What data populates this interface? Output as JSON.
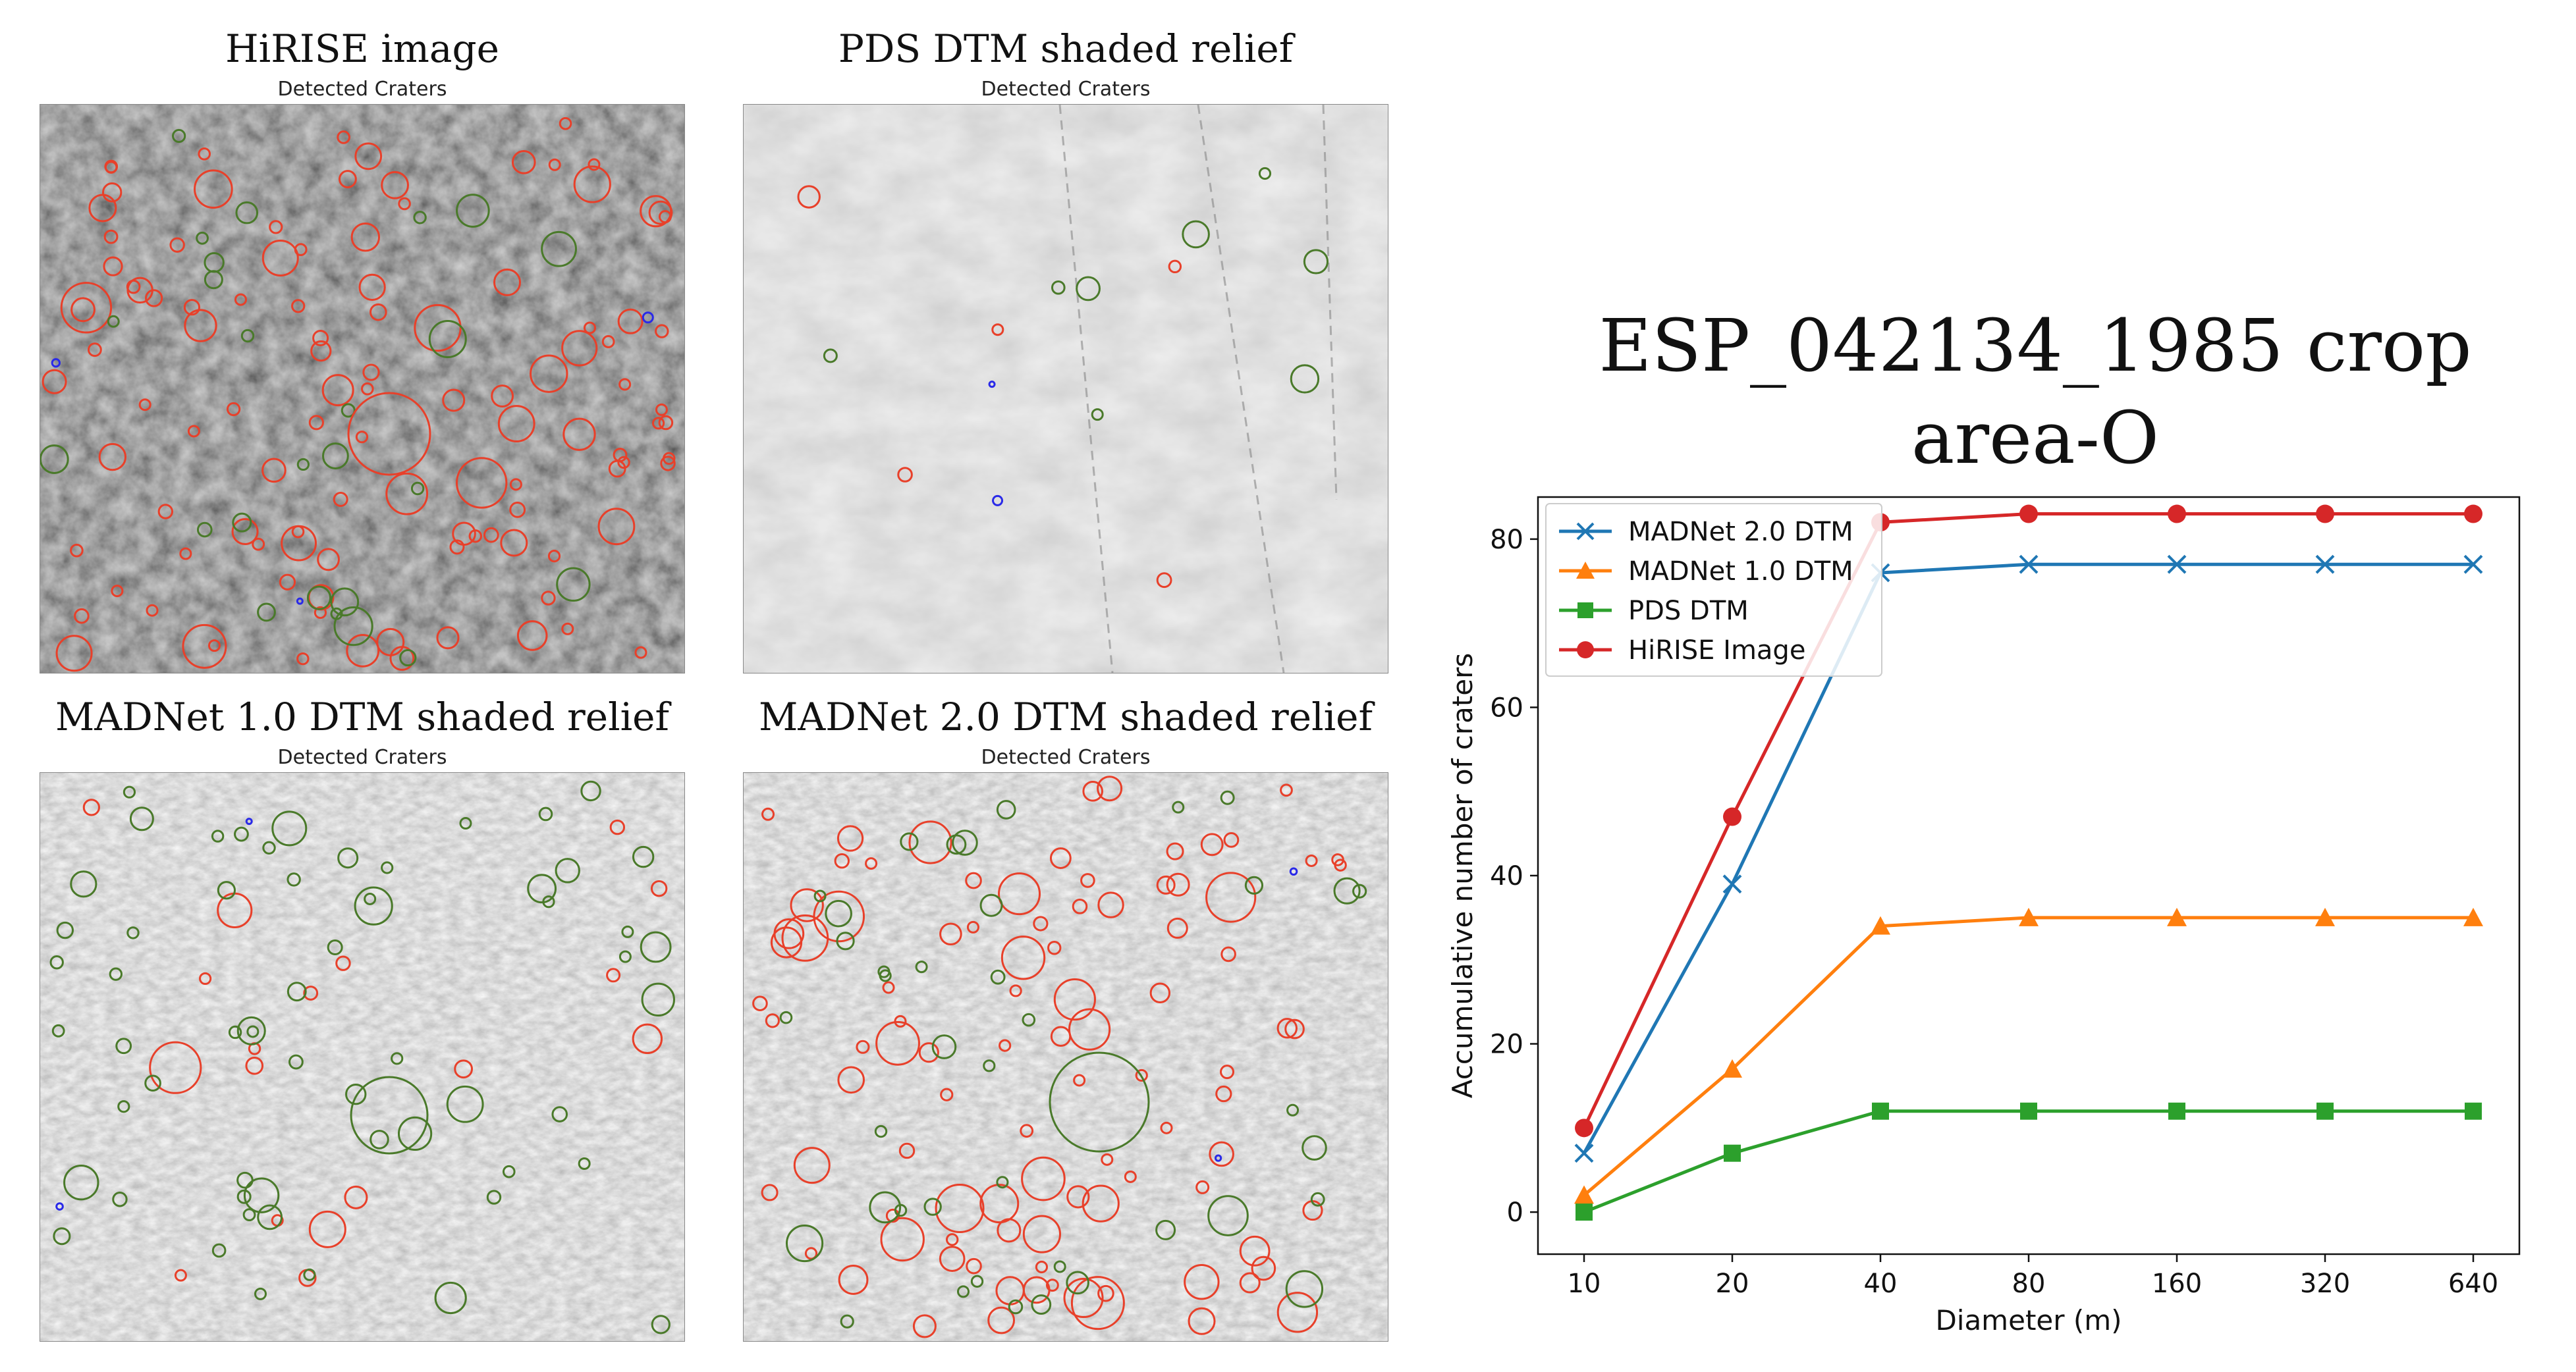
{
  "panels": [
    {
      "title": "HiRISE image",
      "subtitle": "Detected Craters",
      "image": "hirise-grayscale-crater-map",
      "style": "dark"
    },
    {
      "title": "PDS DTM shaded relief",
      "subtitle": "Detected Craters",
      "image": "pds-dtm-shaded-relief-crater-map",
      "style": "smooth"
    },
    {
      "title": "MADNet 1.0 DTM shaded relief",
      "subtitle": "Detected Craters",
      "image": "madnet1-dtm-shaded-relief-crater-map",
      "style": "rough"
    },
    {
      "title": "MADNet 2.0 DTM shaded relief",
      "subtitle": "Detected Craters",
      "image": "madnet2-dtm-shaded-relief-crater-map",
      "style": "rough"
    }
  ],
  "colors": {
    "marker_red": "#e8402a",
    "marker_green": "#4a7a2a",
    "marker_blue": "#2a2ae8"
  },
  "chart_data": {
    "type": "line",
    "title_line1": "ESP_042134_1985 crop",
    "title_line2": "area-O",
    "xlabel": "Diameter (m)",
    "ylabel": "Accumulative number of craters",
    "categories": [
      "10",
      "20",
      "40",
      "80",
      "160",
      "320",
      "640"
    ],
    "ylim": [
      -5,
      85
    ],
    "yticks": [
      0,
      20,
      40,
      60,
      80
    ],
    "legend_position": "upper-left",
    "series": [
      {
        "name": "MADNet 2.0 DTM",
        "color": "#1f77b4",
        "marker": "x",
        "values": [
          7,
          39,
          76,
          77,
          77,
          77,
          77
        ]
      },
      {
        "name": "MADNet 1.0 DTM",
        "color": "#ff7f0e",
        "marker": "triangle",
        "values": [
          2,
          17,
          34,
          35,
          35,
          35,
          35
        ]
      },
      {
        "name": "PDS DTM",
        "color": "#2ca02c",
        "marker": "square",
        "values": [
          0,
          7,
          12,
          12,
          12,
          12,
          12
        ]
      },
      {
        "name": "HiRISE Image",
        "color": "#d62728",
        "marker": "circle",
        "values": [
          10,
          47,
          82,
          83,
          83,
          83,
          83
        ]
      }
    ]
  }
}
